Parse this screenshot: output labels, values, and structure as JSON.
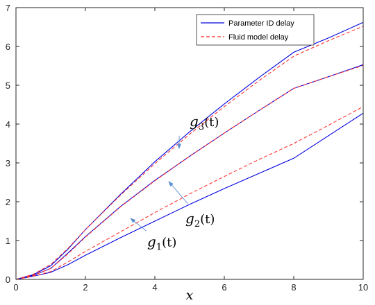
{
  "chart_data": {
    "type": "line",
    "title": "",
    "xlabel": "x",
    "ylabel": "",
    "xlim": [
      0,
      10
    ],
    "ylim": [
      0,
      7
    ],
    "xticks": [
      0,
      2,
      4,
      6,
      8,
      10
    ],
    "yticks": [
      0,
      1,
      2,
      3,
      4,
      5,
      6,
      7
    ],
    "grid": false,
    "legend_position": "top-right",
    "legend": [
      {
        "label": "Parameter ID delay",
        "color": "#0000e0",
        "style": "solid"
      },
      {
        "label": "Fluid model delay",
        "color": "#ff3030",
        "style": "dashed"
      }
    ],
    "series": [
      {
        "name": "Parameter ID delay",
        "curve": "g3",
        "color": "#0000e0",
        "style": "solid",
        "x": [
          0,
          0.5,
          1,
          1.5,
          2,
          3,
          4,
          5,
          6,
          7,
          8,
          9,
          10
        ],
        "y": [
          0,
          0.12,
          0.35,
          0.78,
          1.28,
          2.18,
          3.03,
          3.8,
          4.52,
          5.2,
          5.85,
          6.22,
          6.62
        ]
      },
      {
        "name": "Fluid model delay",
        "curve": "g3",
        "color": "#ff3030",
        "style": "dashed",
        "x": [
          0,
          0.5,
          1,
          1.5,
          2,
          3,
          4,
          5,
          6,
          7,
          8,
          9,
          10
        ],
        "y": [
          0,
          0.13,
          0.38,
          0.8,
          1.28,
          2.16,
          2.98,
          3.74,
          4.45,
          5.12,
          5.75,
          6.15,
          6.52
        ]
      },
      {
        "name": "Parameter ID delay",
        "curve": "g2",
        "color": "#0000e0",
        "style": "solid",
        "x": [
          0,
          0.5,
          1,
          1.5,
          2,
          3,
          4,
          5,
          6,
          7,
          8,
          9,
          10
        ],
        "y": [
          0,
          0.1,
          0.28,
          0.68,
          1.1,
          1.87,
          2.55,
          3.17,
          3.77,
          4.35,
          4.92,
          5.22,
          5.53
        ]
      },
      {
        "name": "Fluid model delay",
        "curve": "g2",
        "color": "#ff3030",
        "style": "dashed",
        "x": [
          0,
          0.5,
          1,
          1.5,
          2,
          3,
          4,
          5,
          6,
          7,
          8,
          9,
          10
        ],
        "y": [
          0,
          0.1,
          0.28,
          0.66,
          1.09,
          1.86,
          2.54,
          3.17,
          3.77,
          4.35,
          4.92,
          5.22,
          5.51
        ]
      },
      {
        "name": "Parameter ID delay",
        "curve": "g1",
        "color": "#0000e0",
        "style": "solid",
        "x": [
          0,
          0.5,
          1,
          1.5,
          2,
          3,
          4,
          5,
          6,
          7,
          8,
          9,
          10
        ],
        "y": [
          0,
          0.08,
          0.18,
          0.38,
          0.62,
          1.07,
          1.5,
          1.93,
          2.34,
          2.73,
          3.12,
          3.7,
          4.28
        ]
      },
      {
        "name": "Fluid model delay",
        "curve": "g1",
        "color": "#ff3030",
        "style": "dashed",
        "x": [
          0,
          0.5,
          1,
          1.5,
          2,
          3,
          4,
          5,
          6,
          7,
          8,
          9,
          10
        ],
        "y": [
          0,
          0.08,
          0.2,
          0.45,
          0.72,
          1.22,
          1.72,
          2.2,
          2.65,
          3.09,
          3.5,
          3.97,
          4.45
        ]
      }
    ],
    "annotations": [
      {
        "id": "g3",
        "main": "g",
        "sub": "3",
        "rest": "(t)",
        "text_x": 5.0,
        "text_y": 3.95,
        "arrow_from": [
          4.7,
          3.7
        ],
        "arrow_to": [
          4.7,
          3.37
        ]
      },
      {
        "id": "g2",
        "main": "g",
        "sub": "2",
        "rest": "(t)",
        "text_x": 4.88,
        "text_y": 1.45,
        "arrow_from": [
          4.95,
          1.95
        ],
        "arrow_to": [
          4.4,
          2.52
        ]
      },
      {
        "id": "g1",
        "main": "g",
        "sub": "1",
        "rest": "(t)",
        "text_x": 3.78,
        "text_y": 0.85,
        "arrow_from": [
          3.75,
          1.25
        ],
        "arrow_to": [
          3.3,
          1.57
        ]
      }
    ]
  }
}
